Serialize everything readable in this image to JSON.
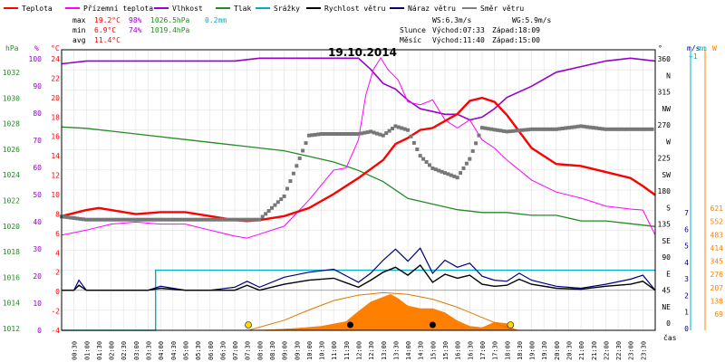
{
  "chart_data": {
    "type": "line",
    "title": "19.10.2014",
    "xlabel": "čas",
    "x_ticks": [
      "00:30",
      "01:00",
      "01:30",
      "02:00",
      "02:30",
      "03:00",
      "03:30",
      "04:00",
      "04:30",
      "05:00",
      "05:30",
      "06:00",
      "06:30",
      "07:00",
      "07:30",
      "08:00",
      "08:30",
      "09:00",
      "09:30",
      "10:00",
      "10:30",
      "11:00",
      "11:30",
      "12:00",
      "12:30",
      "13:00",
      "13:30",
      "14:00",
      "14:30",
      "15:00",
      "15:30",
      "16:00",
      "16:30",
      "17:00",
      "17:30",
      "18:00",
      "18:30",
      "19:00",
      "19:30",
      "20:00",
      "20:30",
      "21:00",
      "21:30",
      "22:00",
      "22:30",
      "23:00",
      "23:30"
    ],
    "legend": [
      {
        "name": "Teplota",
        "color": "#ff0000"
      },
      {
        "name": "Přízemní teplota",
        "color": "#ff00ff"
      },
      {
        "name": "Vlhkost",
        "color": "#9900cc"
      },
      {
        "name": "Tlak",
        "color": "#228b22"
      },
      {
        "name": "Srážky",
        "color": "#00b0c8"
      },
      {
        "name": "Rychlost větru",
        "color": "#000000"
      },
      {
        "name": "Náraz větru",
        "color": "#000080"
      },
      {
        "name": "Směr větru",
        "color": "#808080"
      }
    ],
    "stats": {
      "max_label": "max",
      "min_label": "min",
      "avg_label": "avg",
      "max_temp": "19.2°C",
      "max_hum": "98%",
      "max_press": "1026.5hPa",
      "max_rain": "0.2mm",
      "min_temp": "6.9°C",
      "min_hum": "74%",
      "min_press": "1019.4hPa",
      "avg_temp": "11.4°C"
    },
    "info": {
      "ws": "WS:6.3m/s",
      "wg": "WG:5.9m/s",
      "sun_label": "Slunce",
      "sunrise": "Východ:07:33",
      "sunset": "Západ:18:09",
      "moon_label": "Měsíc",
      "moonrise": "Východ:11:40",
      "moonset": "Západ:15:00"
    },
    "axes": {
      "hpa_title": "hPa",
      "hpa_ticks": [
        "1032",
        "1030",
        "1028",
        "1026",
        "1024",
        "1022",
        "1020",
        "1018",
        "1016",
        "1014",
        "1012"
      ],
      "pct_title": "%",
      "pct_ticks": [
        "100",
        "90",
        "80",
        "70",
        "60",
        "50",
        "40",
        "30",
        "20",
        "10",
        "0"
      ],
      "temp_title": "°C",
      "temp_ticks": [
        "24",
        "22",
        "20",
        "18",
        "16",
        "14",
        "12",
        "10",
        "8",
        "6",
        "4",
        "2",
        "0",
        "-2",
        "-4"
      ],
      "dir_title": "°",
      "dir_ticks": [
        "360",
        "N",
        "315",
        "NW",
        "270",
        "W",
        "225",
        "SW",
        "180",
        "S",
        "135",
        "SE",
        "90",
        "E",
        "45",
        "NE",
        "0"
      ],
      "ms_title": "m/s",
      "ms_top": "~1",
      "ms_ticks": [
        "7",
        "6",
        "5",
        "4",
        "3",
        "2",
        "1",
        "0"
      ],
      "mm_title": "mm",
      "w_title": "W",
      "w_ticks": [
        "621",
        "552",
        "483",
        "414",
        "345",
        "276",
        "207",
        "138",
        "69"
      ]
    },
    "temperature": [
      [
        0,
        7.4
      ],
      [
        1,
        8.0
      ],
      [
        1.5,
        8.2
      ],
      [
        2,
        8.0
      ],
      [
        3,
        7.6
      ],
      [
        4,
        7.8
      ],
      [
        5,
        7.8
      ],
      [
        6,
        7.4
      ],
      [
        7,
        7.0
      ],
      [
        7.5,
        6.9
      ],
      [
        8,
        7.0
      ],
      [
        9,
        7.4
      ],
      [
        10,
        8.2
      ],
      [
        11,
        9.6
      ],
      [
        12,
        11.2
      ],
      [
        13,
        13.0
      ],
      [
        13.5,
        14.6
      ],
      [
        14,
        15.2
      ],
      [
        14.5,
        16.0
      ],
      [
        15,
        16.2
      ],
      [
        16,
        17.6
      ],
      [
        16.5,
        18.9
      ],
      [
        17,
        19.2
      ],
      [
        17.5,
        18.8
      ],
      [
        18,
        17.5
      ],
      [
        19,
        14.2
      ],
      [
        20,
        12.6
      ],
      [
        21,
        12.4
      ],
      [
        22,
        11.8
      ],
      [
        23,
        11.2
      ],
      [
        23.5,
        10.4
      ],
      [
        24,
        9.5
      ]
    ],
    "ground_temp": [
      [
        0,
        5.5
      ],
      [
        1,
        6.0
      ],
      [
        2,
        6.6
      ],
      [
        3,
        6.8
      ],
      [
        4,
        6.6
      ],
      [
        5,
        6.6
      ],
      [
        6,
        6.0
      ],
      [
        7,
        5.4
      ],
      [
        7.5,
        5.2
      ],
      [
        8,
        5.6
      ],
      [
        9,
        6.4
      ],
      [
        10,
        9.0
      ],
      [
        11,
        12.0
      ],
      [
        11.5,
        12.2
      ],
      [
        12,
        15.0
      ],
      [
        12.3,
        19.5
      ],
      [
        12.6,
        22.0
      ],
      [
        12.9,
        23.2
      ],
      [
        13.2,
        22.0
      ],
      [
        13.6,
        21.0
      ],
      [
        14,
        18.8
      ],
      [
        14.5,
        18.5
      ],
      [
        15,
        19.0
      ],
      [
        15.5,
        17.0
      ],
      [
        16,
        16.2
      ],
      [
        16.5,
        17.0
      ],
      [
        17,
        15.0
      ],
      [
        17.5,
        14.2
      ],
      [
        18,
        13.0
      ],
      [
        19,
        11.0
      ],
      [
        20,
        9.8
      ],
      [
        21,
        9.2
      ],
      [
        22,
        8.4
      ],
      [
        23,
        8.1
      ],
      [
        23.5,
        8.0
      ],
      [
        24,
        5.5
      ]
    ],
    "humidity": [
      [
        0,
        95
      ],
      [
        1,
        96
      ],
      [
        2,
        96
      ],
      [
        3,
        96
      ],
      [
        4,
        96
      ],
      [
        5,
        96
      ],
      [
        6,
        96
      ],
      [
        7,
        96
      ],
      [
        8,
        97
      ],
      [
        9,
        97
      ],
      [
        10,
        97
      ],
      [
        11,
        97
      ],
      [
        12,
        97
      ],
      [
        12.5,
        93
      ],
      [
        13,
        88
      ],
      [
        13.5,
        86
      ],
      [
        14,
        82
      ],
      [
        14.5,
        79
      ],
      [
        15,
        78
      ],
      [
        15.5,
        77
      ],
      [
        16,
        77
      ],
      [
        16.5,
        75
      ],
      [
        17,
        76
      ],
      [
        17.5,
        79
      ],
      [
        18,
        83
      ],
      [
        19,
        87
      ],
      [
        20,
        92
      ],
      [
        21,
        94
      ],
      [
        22,
        96
      ],
      [
        23,
        97
      ],
      [
        24,
        96
      ]
    ],
    "pressure": [
      [
        0,
        1026.5
      ],
      [
        1,
        1026.4
      ],
      [
        2,
        1026.2
      ],
      [
        3,
        1026.0
      ],
      [
        4,
        1025.8
      ],
      [
        5,
        1025.6
      ],
      [
        6,
        1025.4
      ],
      [
        7,
        1025.2
      ],
      [
        8,
        1025.0
      ],
      [
        9,
        1024.8
      ],
      [
        10,
        1024.4
      ],
      [
        11,
        1024.0
      ],
      [
        12,
        1023.4
      ],
      [
        13,
        1022.6
      ],
      [
        14,
        1021.4
      ],
      [
        15,
        1021.0
      ],
      [
        16,
        1020.6
      ],
      [
        17,
        1020.4
      ],
      [
        18,
        1020.4
      ],
      [
        19,
        1020.2
      ],
      [
        20,
        1020.2
      ],
      [
        21,
        1019.8
      ],
      [
        22,
        1019.8
      ],
      [
        23,
        1019.6
      ],
      [
        24,
        1019.4
      ]
    ],
    "rain_points": [
      [
        0,
        0
      ],
      [
        3.8,
        0
      ],
      [
        3.8,
        0.2
      ],
      [
        24,
        0.2
      ]
    ],
    "wind_speed": [
      [
        0,
        0
      ],
      [
        0.5,
        0
      ],
      [
        0.7,
        0.5
      ],
      [
        1,
        0
      ],
      [
        2,
        0
      ],
      [
        3.5,
        0
      ],
      [
        4,
        0.2
      ],
      [
        5,
        0
      ],
      [
        6,
        0
      ],
      [
        7,
        0
      ],
      [
        7.5,
        0.5
      ],
      [
        8,
        0
      ],
      [
        9,
        0.6
      ],
      [
        10,
        1.0
      ],
      [
        11,
        1.2
      ],
      [
        12,
        0.3
      ],
      [
        12.5,
        1.0
      ],
      [
        13,
        1.8
      ],
      [
        13.5,
        2.3
      ],
      [
        14,
        1.5
      ],
      [
        14.5,
        2.5
      ],
      [
        15,
        0.8
      ],
      [
        15.5,
        1.6
      ],
      [
        16,
        1.2
      ],
      [
        16.5,
        1.5
      ],
      [
        17,
        0.6
      ],
      [
        17.5,
        0.4
      ],
      [
        18,
        0.5
      ],
      [
        18.5,
        1.1
      ],
      [
        19,
        0.6
      ],
      [
        20,
        0.2
      ],
      [
        21,
        0.1
      ],
      [
        22,
        0.4
      ],
      [
        23,
        0.6
      ],
      [
        23.5,
        0.9
      ],
      [
        24,
        0
      ]
    ],
    "wind_gust": [
      [
        0,
        0
      ],
      [
        0.5,
        0
      ],
      [
        0.7,
        1.0
      ],
      [
        1,
        0
      ],
      [
        2,
        0
      ],
      [
        3.5,
        0
      ],
      [
        4,
        0.4
      ],
      [
        5,
        0
      ],
      [
        6,
        0
      ],
      [
        7,
        0.3
      ],
      [
        7.5,
        0.9
      ],
      [
        8,
        0.3
      ],
      [
        9,
        1.3
      ],
      [
        10,
        1.8
      ],
      [
        11,
        2.1
      ],
      [
        12,
        0.8
      ],
      [
        12.5,
        1.7
      ],
      [
        13,
        3.0
      ],
      [
        13.5,
        4.1
      ],
      [
        14,
        2.9
      ],
      [
        14.5,
        4.2
      ],
      [
        15,
        1.7
      ],
      [
        15.5,
        3.0
      ],
      [
        16,
        2.3
      ],
      [
        16.5,
        2.7
      ],
      [
        17,
        1.4
      ],
      [
        17.5,
        1.0
      ],
      [
        18,
        0.9
      ],
      [
        18.5,
        1.7
      ],
      [
        19,
        1.0
      ],
      [
        20,
        0.4
      ],
      [
        21,
        0.2
      ],
      [
        22,
        0.6
      ],
      [
        23,
        1.1
      ],
      [
        23.5,
        1.5
      ],
      [
        24,
        0
      ]
    ],
    "wind_dir": [
      [
        0,
        146
      ],
      [
        1,
        142
      ],
      [
        2,
        142
      ],
      [
        3,
        142
      ],
      [
        4,
        142
      ],
      [
        5,
        142
      ],
      [
        6,
        142
      ],
      [
        7,
        142
      ],
      [
        8,
        142
      ],
      [
        9,
        172
      ],
      [
        10,
        250
      ],
      [
        10.5,
        252
      ],
      [
        11,
        252
      ],
      [
        12,
        252
      ],
      [
        12.5,
        255
      ],
      [
        13,
        250
      ],
      [
        13.5,
        262
      ],
      [
        14,
        257
      ],
      [
        14.5,
        224
      ],
      [
        15,
        208
      ],
      [
        16,
        196
      ],
      [
        16.5,
        220
      ],
      [
        17,
        260
      ],
      [
        18,
        255
      ],
      [
        19,
        258
      ],
      [
        20,
        258
      ],
      [
        21,
        262
      ],
      [
        22,
        258
      ],
      [
        23,
        258
      ],
      [
        24,
        258
      ]
    ],
    "solar": [
      [
        0,
        0
      ],
      [
        7.5,
        0
      ],
      [
        8.5,
        10
      ],
      [
        9.5,
        30
      ],
      [
        10.5,
        60
      ],
      [
        11.5,
        130
      ],
      [
        12,
        280
      ],
      [
        12.5,
        420
      ],
      [
        13,
        490
      ],
      [
        13.3,
        530
      ],
      [
        13.6,
        470
      ],
      [
        14,
        360
      ],
      [
        14.5,
        320
      ],
      [
        15,
        320
      ],
      [
        15.5,
        260
      ],
      [
        16,
        140
      ],
      [
        16.5,
        60
      ],
      [
        17,
        40
      ],
      [
        17.5,
        120
      ],
      [
        18,
        100
      ],
      [
        18.3,
        20
      ],
      [
        18.5,
        0
      ],
      [
        24,
        0
      ]
    ],
    "solar_max": [
      [
        7.55,
        0
      ],
      [
        9,
        150
      ],
      [
        10,
        300
      ],
      [
        11,
        440
      ],
      [
        12,
        520
      ],
      [
        13,
        555
      ],
      [
        14,
        530
      ],
      [
        15,
        460
      ],
      [
        16,
        340
      ],
      [
        17,
        190
      ],
      [
        18,
        40
      ],
      [
        18.15,
        0
      ]
    ],
    "markers": {
      "moon_rise": 11.67,
      "moon_set": 15.0,
      "sun_rise": 7.55,
      "sun_set": 18.15,
      "moon_color": "#000000",
      "sun_color": "#ffd700"
    }
  }
}
